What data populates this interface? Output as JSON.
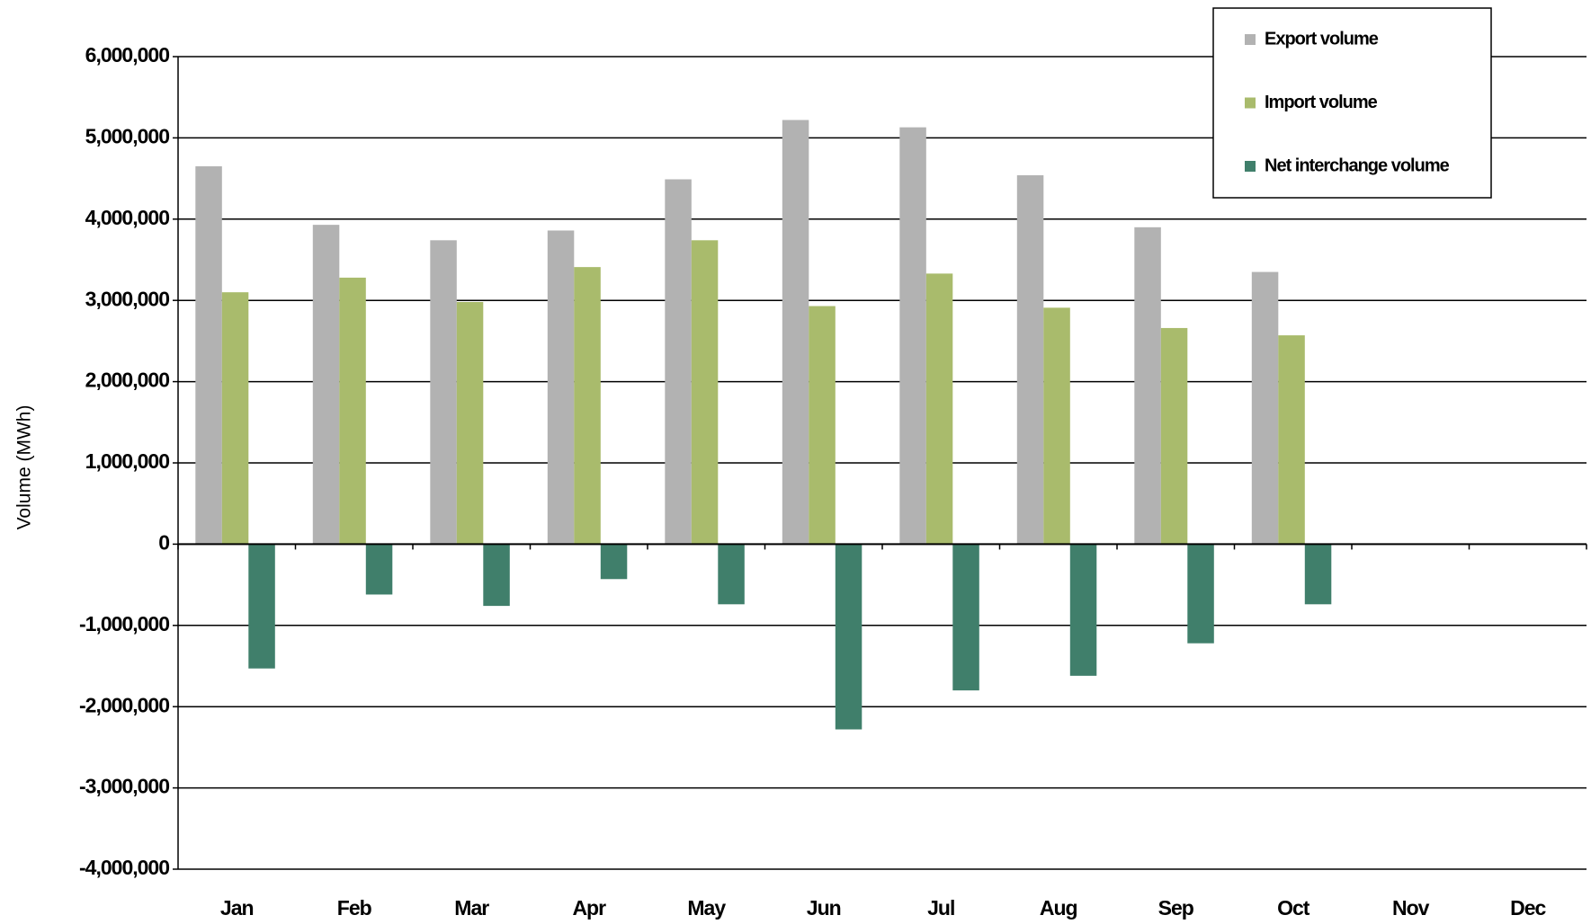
{
  "chart_data": {
    "type": "bar",
    "y_label": "Volume (MWh)",
    "categories": [
      "Jan",
      "Feb",
      "Mar",
      "Apr",
      "May",
      "Jun",
      "Jul",
      "Aug",
      "Sep",
      "Oct",
      "Nov",
      "Dec"
    ],
    "series": [
      {
        "name": "Export volume",
        "color": "#b2b2b2",
        "values": [
          4650000,
          3930000,
          3740000,
          3860000,
          4490000,
          5220000,
          5130000,
          4540000,
          3900000,
          3350000,
          null,
          null
        ]
      },
      {
        "name": "Import volume",
        "color": "#a9bb6c",
        "values": [
          3100000,
          3280000,
          2980000,
          3410000,
          3740000,
          2930000,
          3330000,
          2910000,
          2660000,
          2570000,
          null,
          null
        ]
      },
      {
        "name": "Net interchange volume",
        "color": "#407f6b",
        "values": [
          -1530000,
          -620000,
          -760000,
          -430000,
          -740000,
          -2280000,
          -1800000,
          -1620000,
          -1220000,
          -740000,
          null,
          null
        ]
      }
    ],
    "ylim": [
      -4000000,
      6000000
    ],
    "yticks": [
      {
        "value": -4000000,
        "label": "-4,000,000"
      },
      {
        "value": -3000000,
        "label": "-3,000,000"
      },
      {
        "value": -2000000,
        "label": "-2,000,000"
      },
      {
        "value": -1000000,
        "label": "-1,000,000"
      },
      0,
      {
        "value": 1000000,
        "label": "1,000,000"
      },
      {
        "value": 2000000,
        "label": "2,000,000"
      },
      {
        "value": 3000000,
        "label": "3,000,000"
      },
      {
        "value": 4000000,
        "label": "4,000,000"
      },
      {
        "value": 5000000,
        "label": "5,000,000"
      },
      {
        "value": 6000000,
        "label": "6,000,000"
      }
    ],
    "grid": true,
    "legend": "top-right"
  }
}
